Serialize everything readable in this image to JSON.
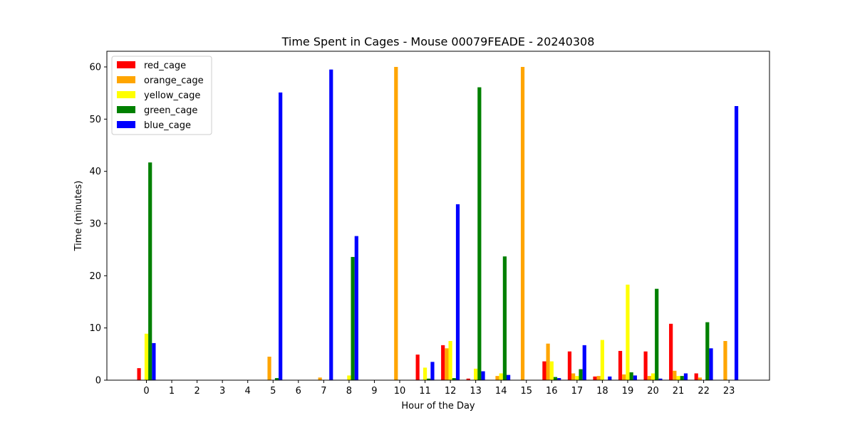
{
  "chart_data": {
    "type": "bar",
    "title": "Time Spent in Cages - Mouse 00079FEADE - 20240308",
    "xlabel": "Hour of the Day",
    "ylabel": "Time (minutes)",
    "ylim": [
      0,
      63
    ],
    "yticks": [
      0,
      10,
      20,
      30,
      40,
      50,
      60
    ],
    "legend_position": "top-left",
    "grid": false,
    "categories": [
      "0",
      "1",
      "2",
      "3",
      "4",
      "5",
      "6",
      "7",
      "8",
      "9",
      "10",
      "11",
      "12",
      "13",
      "14",
      "15",
      "16",
      "17",
      "18",
      "19",
      "20",
      "21",
      "22",
      "23"
    ],
    "series": [
      {
        "name": "red_cage",
        "color": "#ff0000",
        "values": [
          2.3,
          0,
          0,
          0,
          0,
          0,
          0,
          0,
          0,
          0,
          0,
          4.9,
          6.7,
          0.3,
          0,
          0,
          3.6,
          5.5,
          0.7,
          5.6,
          5.5,
          10.8,
          1.3,
          0
        ]
      },
      {
        "name": "orange_cage",
        "color": "#ffa500",
        "values": [
          0,
          0,
          0,
          0,
          0,
          4.5,
          0,
          0.5,
          0,
          0,
          60.0,
          0,
          6.1,
          0,
          0.8,
          60.0,
          7.0,
          1.3,
          0.8,
          1.1,
          0.8,
          1.8,
          0.5,
          7.5
        ]
      },
      {
        "name": "yellow_cage",
        "color": "#ffff00",
        "values": [
          8.9,
          0,
          0,
          0,
          0,
          0,
          0,
          0,
          0.9,
          0,
          0,
          2.4,
          7.5,
          2.2,
          1.3,
          0,
          3.6,
          0.8,
          7.7,
          18.3,
          1.3,
          0.8,
          0,
          0
        ]
      },
      {
        "name": "green_cage",
        "color": "#008000",
        "values": [
          41.7,
          0,
          0,
          0,
          0,
          0.4,
          0,
          0,
          23.6,
          0,
          0,
          0.3,
          0.4,
          56.1,
          23.7,
          0,
          0.6,
          2.1,
          0,
          1.5,
          17.5,
          0.8,
          11.1,
          0
        ]
      },
      {
        "name": "blue_cage",
        "color": "#0000ff",
        "values": [
          7.1,
          0,
          0,
          0,
          0,
          55.1,
          0,
          59.5,
          27.6,
          0,
          0,
          3.5,
          33.7,
          1.7,
          1.0,
          0,
          0.4,
          6.7,
          0.7,
          0.9,
          0.3,
          1.3,
          6.1,
          52.5
        ]
      }
    ]
  }
}
